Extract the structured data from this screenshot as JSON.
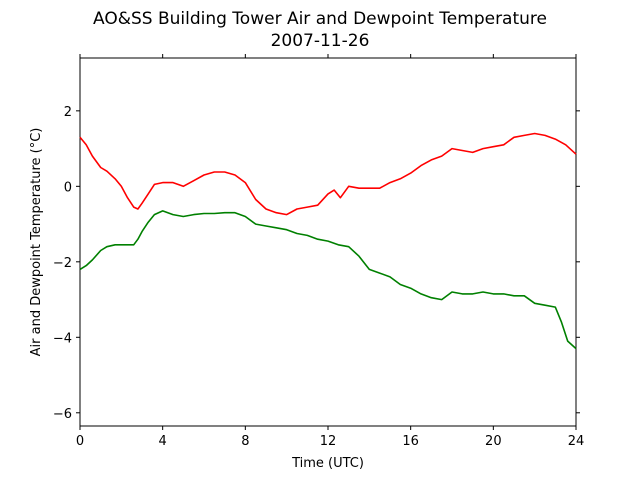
{
  "chart_data": {
    "type": "line",
    "title": "AO&SS Building Tower Air and Dewpoint Temperature",
    "subtitle": "2007-11-26",
    "xlabel": "Time (UTC)",
    "ylabel": "Air and Dewpoint Temperature (°C)",
    "xlim": [
      0,
      24
    ],
    "ylim": [
      -6.35,
      3.4
    ],
    "xticks": [
      0,
      4,
      8,
      12,
      16,
      20,
      24
    ],
    "xtick_labels": [
      "0",
      "4",
      "8",
      "12",
      "16",
      "20",
      "24"
    ],
    "yticks": [
      -6,
      -4,
      -2,
      0,
      2
    ],
    "ytick_labels": [
      "−6",
      "−4",
      "−2",
      "0",
      "2"
    ],
    "grid": false,
    "series": [
      {
        "color": "#ff0000",
        "x": [
          0,
          0.3,
          0.6,
          1.0,
          1.3,
          1.7,
          2.0,
          2.3,
          2.6,
          2.8,
          3.0,
          3.3,
          3.6,
          4.0,
          4.5,
          5.0,
          5.5,
          6.0,
          6.5,
          7.0,
          7.5,
          8.0,
          8.5,
          9.0,
          9.5,
          10.0,
          10.5,
          11.0,
          11.5,
          12.0,
          12.3,
          12.6,
          13.0,
          13.5,
          14.0,
          14.5,
          15.0,
          15.5,
          16.0,
          16.5,
          17.0,
          17.5,
          18.0,
          18.5,
          19.0,
          19.5,
          20.0,
          20.5,
          21.0,
          21.5,
          22.0,
          22.5,
          23.0,
          23.5,
          24.0
        ],
        "y": [
          1.3,
          1.1,
          0.8,
          0.5,
          0.4,
          0.2,
          0.0,
          -0.3,
          -0.55,
          -0.6,
          -0.45,
          -0.2,
          0.05,
          0.1,
          0.1,
          0.0,
          0.15,
          0.3,
          0.38,
          0.38,
          0.3,
          0.1,
          -0.35,
          -0.6,
          -0.7,
          -0.75,
          -0.6,
          -0.55,
          -0.5,
          -0.2,
          -0.1,
          -0.3,
          0.0,
          -0.05,
          -0.05,
          -0.05,
          0.1,
          0.2,
          0.35,
          0.55,
          0.7,
          0.8,
          1.0,
          0.95,
          0.9,
          1.0,
          1.05,
          1.1,
          1.3,
          1.35,
          1.4,
          1.35,
          1.25,
          1.1,
          0.85
        ]
      },
      {
        "color": "#008000",
        "x": [
          0,
          0.3,
          0.6,
          1.0,
          1.3,
          1.7,
          2.0,
          2.3,
          2.6,
          2.8,
          3.0,
          3.3,
          3.6,
          4.0,
          4.5,
          5.0,
          5.5,
          6.0,
          6.5,
          7.0,
          7.5,
          8.0,
          8.5,
          9.0,
          9.5,
          10.0,
          10.5,
          11.0,
          11.5,
          12.0,
          12.5,
          13.0,
          13.5,
          14.0,
          14.5,
          15.0,
          15.5,
          16.0,
          16.5,
          17.0,
          17.5,
          18.0,
          18.5,
          19.0,
          19.5,
          20.0,
          20.5,
          21.0,
          21.5,
          22.0,
          22.5,
          23.0,
          23.3,
          23.6,
          24.0
        ],
        "y": [
          -2.2,
          -2.1,
          -1.95,
          -1.7,
          -1.6,
          -1.55,
          -1.55,
          -1.55,
          -1.55,
          -1.4,
          -1.2,
          -0.95,
          -0.75,
          -0.65,
          -0.75,
          -0.8,
          -0.75,
          -0.72,
          -0.72,
          -0.7,
          -0.7,
          -0.8,
          -1.0,
          -1.05,
          -1.1,
          -1.15,
          -1.25,
          -1.3,
          -1.4,
          -1.45,
          -1.55,
          -1.6,
          -1.85,
          -2.2,
          -2.3,
          -2.4,
          -2.6,
          -2.7,
          -2.85,
          -2.95,
          -3.0,
          -2.8,
          -2.85,
          -2.85,
          -2.8,
          -2.85,
          -2.85,
          -2.9,
          -2.9,
          -3.1,
          -3.15,
          -3.2,
          -3.6,
          -4.1,
          -4.3
        ]
      }
    ]
  }
}
